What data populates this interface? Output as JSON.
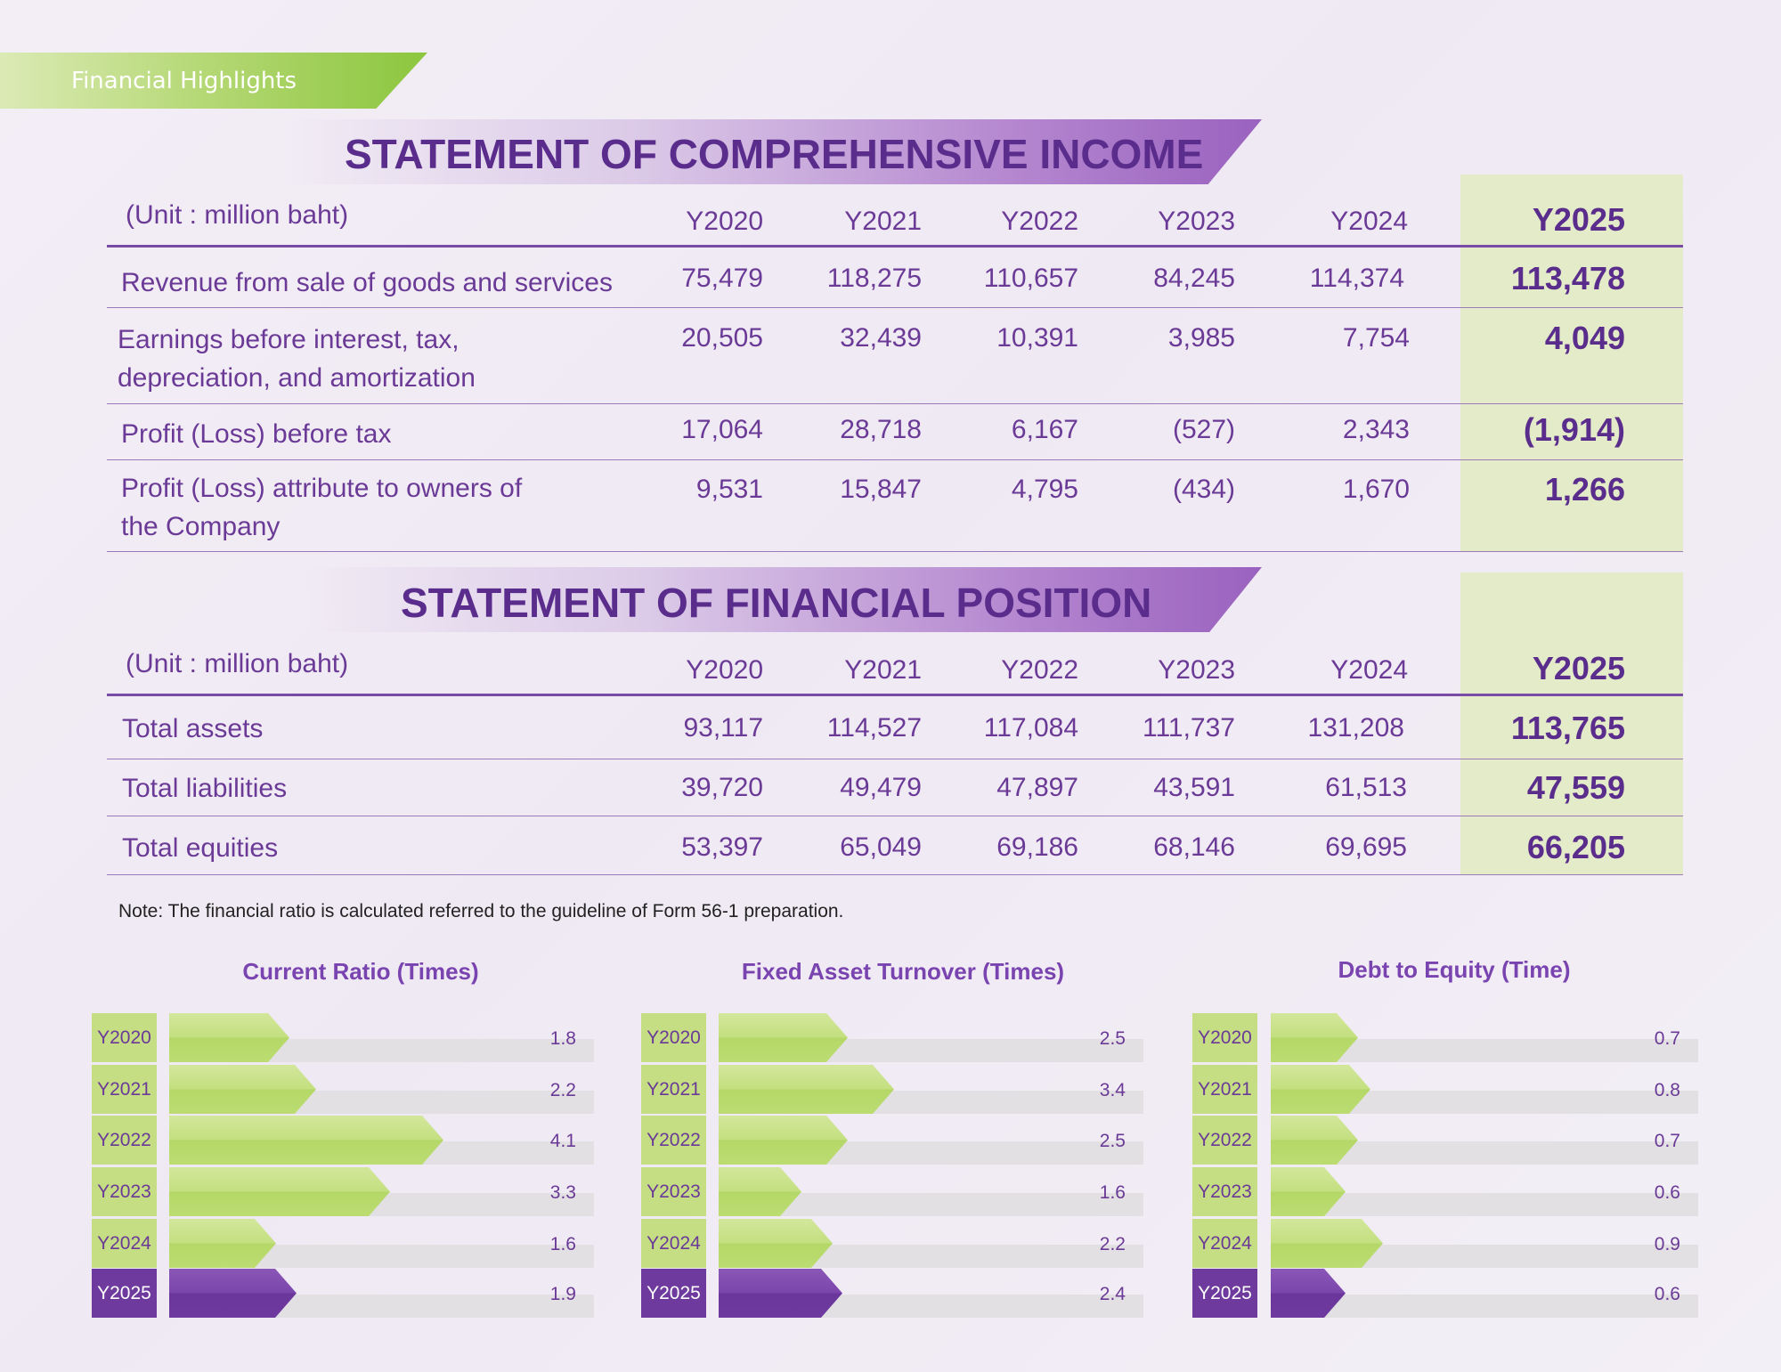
{
  "section_tag": "Financial Highlights",
  "income": {
    "title": "STATEMENT OF COMPREHENSIVE INCOME",
    "unit": "(Unit : million baht)",
    "years": [
      "Y2020",
      "Y2021",
      "Y2022",
      "Y2023",
      "Y2024",
      "Y2025"
    ],
    "rows": [
      {
        "label": "Revenue from sale of goods and services",
        "values": [
          "75,479",
          "118,275",
          "110,657",
          "84,245",
          "114,374",
          "113,478"
        ]
      },
      {
        "label": "Earnings before interest, tax, depreciation, and amortization",
        "values": [
          "20,505",
          "32,439",
          "10,391",
          "3,985",
          "7,754",
          "4,049"
        ]
      },
      {
        "label": "Profit (Loss) before tax",
        "values": [
          "17,064",
          "28,718",
          "6,167",
          "(527)",
          "2,343",
          "(1,914)"
        ]
      },
      {
        "label": "Profit (Loss) attribute to owners of the Company",
        "values": [
          "9,531",
          "15,847",
          "4,795",
          "(434)",
          "1,670",
          "1,266"
        ]
      }
    ]
  },
  "position": {
    "title": "STATEMENT OF FINANCIAL POSITION",
    "unit": "(Unit : million baht)",
    "years": [
      "Y2020",
      "Y2021",
      "Y2022",
      "Y2023",
      "Y2024",
      "Y2025"
    ],
    "rows": [
      {
        "label": "Total assets",
        "values": [
          "93,117",
          "114,527",
          "117,084",
          "111,737",
          "131,208",
          "113,765"
        ]
      },
      {
        "label": "Total liabilities",
        "values": [
          "39,720",
          "49,479",
          "47,897",
          "43,591",
          "61,513",
          "47,559"
        ]
      },
      {
        "label": "Total equities",
        "values": [
          "53,397",
          "65,049",
          "69,186",
          "68,146",
          "69,695",
          "66,205"
        ]
      }
    ]
  },
  "note": "Note: The financial ratio is calculated referred to the guideline of Form 56-1 preparation.",
  "colors": {
    "purple": "#6f3a9e",
    "green": "#c3df7f",
    "highlight": "#e3ebc8"
  },
  "chart_data": [
    {
      "type": "bar",
      "title": "Current Ratio (Times)",
      "categories": [
        "Y2020",
        "Y2021",
        "Y2022",
        "Y2023",
        "Y2024",
        "Y2025"
      ],
      "values": [
        1.8,
        2.2,
        4.1,
        3.3,
        1.6,
        1.9
      ],
      "value_labels": [
        "1.8",
        "2.2",
        "4.1",
        "3.3",
        "1.6",
        "1.9"
      ]
    },
    {
      "type": "bar",
      "title": "Fixed Asset Turnover (Times)",
      "categories": [
        "Y2020",
        "Y2021",
        "Y2022",
        "Y2023",
        "Y2024",
        "Y2025"
      ],
      "values": [
        2.5,
        3.4,
        2.5,
        1.6,
        2.2,
        2.4
      ],
      "value_labels": [
        "2.5",
        "3.4",
        "2.5",
        "1.6",
        "2.2",
        "2.4"
      ]
    },
    {
      "type": "bar",
      "title": "Debt to Equity (Time)",
      "categories": [
        "Y2020",
        "Y2021",
        "Y2022",
        "Y2023",
        "Y2024",
        "Y2025"
      ],
      "values": [
        0.7,
        0.8,
        0.7,
        0.6,
        0.9,
        0.6
      ],
      "value_labels": [
        "0.7",
        "0.8",
        "0.7",
        "0.6",
        "0.9",
        "0.6"
      ]
    }
  ]
}
